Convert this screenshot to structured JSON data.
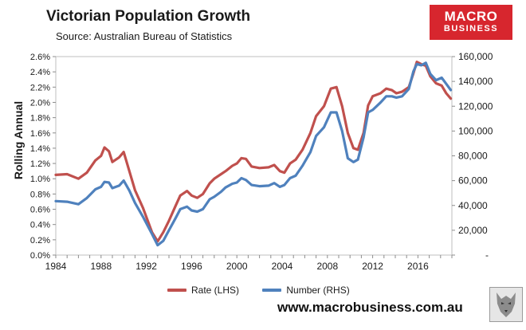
{
  "colors": {
    "rate": "#c0504d",
    "number": "#4f81bd",
    "brand_red": "#d7262e"
  },
  "logo": {
    "line1": "MACRO",
    "line2": "BUSINESS",
    "emblem": "wolf-emblem-icon"
  },
  "footer": {
    "url": "www.macrobusiness.com.au"
  },
  "chart_data": {
    "type": "line",
    "title": "Victorian Population Growth",
    "subtitle": "Source: Australian Bureau of Statistics",
    "ylabel": "Rolling Annual",
    "y_left": {
      "ylim": [
        0,
        2.6
      ],
      "ticks": [
        "0.0%",
        "0.2%",
        "0.4%",
        "0.6%",
        "0.8%",
        "1.0%",
        "1.2%",
        "1.4%",
        "1.6%",
        "1.8%",
        "2.0%",
        "2.2%",
        "2.4%",
        "2.6%"
      ]
    },
    "y_right": {
      "ylim": [
        0,
        160000
      ],
      "ticks": [
        "-",
        "20,000",
        "40,000",
        "60,000",
        "80,000",
        "100,000",
        "120,000",
        "140,000",
        "160,000"
      ]
    },
    "x_ticks": [
      "1984",
      "1988",
      "1992",
      "1996",
      "2000",
      "2004",
      "2008",
      "2012",
      "2016"
    ],
    "xlim": [
      1984,
      2019
    ],
    "series": [
      {
        "name": "Rate (LHS)",
        "axis": "left",
        "points": [
          [
            1984,
            1.05
          ],
          [
            1985,
            1.06
          ],
          [
            1986,
            1.0
          ],
          [
            1986.75,
            1.08
          ],
          [
            1987.5,
            1.24
          ],
          [
            1988,
            1.3
          ],
          [
            1988.3,
            1.41
          ],
          [
            1988.7,
            1.36
          ],
          [
            1989,
            1.22
          ],
          [
            1989.6,
            1.28
          ],
          [
            1990,
            1.35
          ],
          [
            1990.5,
            1.1
          ],
          [
            1991,
            0.85
          ],
          [
            1991.7,
            0.62
          ],
          [
            1992.5,
            0.3
          ],
          [
            1993,
            0.18
          ],
          [
            1993.5,
            0.3
          ],
          [
            1994,
            0.45
          ],
          [
            1994.6,
            0.65
          ],
          [
            1995,
            0.78
          ],
          [
            1995.6,
            0.84
          ],
          [
            1996,
            0.78
          ],
          [
            1996.5,
            0.75
          ],
          [
            1997,
            0.8
          ],
          [
            1997.6,
            0.94
          ],
          [
            1998,
            1.0
          ],
          [
            1998.6,
            1.06
          ],
          [
            1999,
            1.1
          ],
          [
            1999.6,
            1.17
          ],
          [
            2000,
            1.2
          ],
          [
            2000.4,
            1.27
          ],
          [
            2000.8,
            1.26
          ],
          [
            2001.3,
            1.16
          ],
          [
            2002,
            1.14
          ],
          [
            2002.8,
            1.15
          ],
          [
            2003.3,
            1.18
          ],
          [
            2003.8,
            1.1
          ],
          [
            2004.2,
            1.08
          ],
          [
            2004.7,
            1.2
          ],
          [
            2005.2,
            1.25
          ],
          [
            2005.8,
            1.38
          ],
          [
            2006.5,
            1.6
          ],
          [
            2007,
            1.82
          ],
          [
            2007.7,
            1.95
          ],
          [
            2008.3,
            2.18
          ],
          [
            2008.8,
            2.2
          ],
          [
            2009.3,
            1.95
          ],
          [
            2009.8,
            1.6
          ],
          [
            2010.3,
            1.4
          ],
          [
            2010.7,
            1.38
          ],
          [
            2011.2,
            1.6
          ],
          [
            2011.6,
            1.96
          ],
          [
            2012,
            2.08
          ],
          [
            2012.7,
            2.12
          ],
          [
            2013.2,
            2.18
          ],
          [
            2013.7,
            2.16
          ],
          [
            2014.1,
            2.12
          ],
          [
            2014.6,
            2.14
          ],
          [
            2015.2,
            2.2
          ],
          [
            2015.6,
            2.38
          ],
          [
            2015.9,
            2.53
          ],
          [
            2016.3,
            2.5
          ],
          [
            2016.7,
            2.48
          ],
          [
            2017.1,
            2.34
          ],
          [
            2017.6,
            2.25
          ],
          [
            2018.1,
            2.22
          ],
          [
            2018.5,
            2.12
          ],
          [
            2018.9,
            2.05
          ]
        ]
      },
      {
        "name": "Number (RHS)",
        "axis": "right",
        "points": [
          [
            1984,
            43500
          ],
          [
            1985,
            43000
          ],
          [
            1986,
            41000
          ],
          [
            1986.75,
            46000
          ],
          [
            1987.5,
            53000
          ],
          [
            1988,
            55000
          ],
          [
            1988.3,
            59000
          ],
          [
            1988.7,
            58500
          ],
          [
            1989,
            54000
          ],
          [
            1989.6,
            56000
          ],
          [
            1990,
            60000
          ],
          [
            1990.5,
            52000
          ],
          [
            1991,
            42000
          ],
          [
            1991.7,
            31000
          ],
          [
            1992.5,
            17000
          ],
          [
            1993,
            8000
          ],
          [
            1993.5,
            11500
          ],
          [
            1994,
            20000
          ],
          [
            1994.6,
            30000
          ],
          [
            1995,
            37000
          ],
          [
            1995.6,
            39000
          ],
          [
            1996,
            36000
          ],
          [
            1996.5,
            35000
          ],
          [
            1997,
            37000
          ],
          [
            1997.6,
            45000
          ],
          [
            1998,
            47000
          ],
          [
            1998.6,
            51000
          ],
          [
            1999,
            54500
          ],
          [
            1999.6,
            57500
          ],
          [
            2000,
            58500
          ],
          [
            2000.4,
            62000
          ],
          [
            2000.8,
            60500
          ],
          [
            2001.3,
            56500
          ],
          [
            2002,
            55500
          ],
          [
            2002.8,
            56000
          ],
          [
            2003.3,
            58000
          ],
          [
            2003.8,
            55000
          ],
          [
            2004.2,
            56500
          ],
          [
            2004.7,
            62000
          ],
          [
            2005.2,
            64000
          ],
          [
            2005.8,
            72000
          ],
          [
            2006.5,
            83000
          ],
          [
            2007,
            96000
          ],
          [
            2007.7,
            103000
          ],
          [
            2008.3,
            115000
          ],
          [
            2008.8,
            115000
          ],
          [
            2009.3,
            100000
          ],
          [
            2009.8,
            78000
          ],
          [
            2010.3,
            75000
          ],
          [
            2010.7,
            77000
          ],
          [
            2011.2,
            95000
          ],
          [
            2011.6,
            115000
          ],
          [
            2012,
            117000
          ],
          [
            2012.7,
            123000
          ],
          [
            2013.2,
            128000
          ],
          [
            2013.7,
            128000
          ],
          [
            2014.1,
            127000
          ],
          [
            2014.6,
            128000
          ],
          [
            2015.2,
            134000
          ],
          [
            2015.6,
            148000
          ],
          [
            2015.9,
            154000
          ],
          [
            2016.3,
            153000
          ],
          [
            2016.7,
            155000
          ],
          [
            2017.1,
            146000
          ],
          [
            2017.6,
            141000
          ],
          [
            2018.1,
            143000
          ],
          [
            2018.5,
            138000
          ],
          [
            2018.9,
            133000
          ]
        ]
      }
    ]
  }
}
